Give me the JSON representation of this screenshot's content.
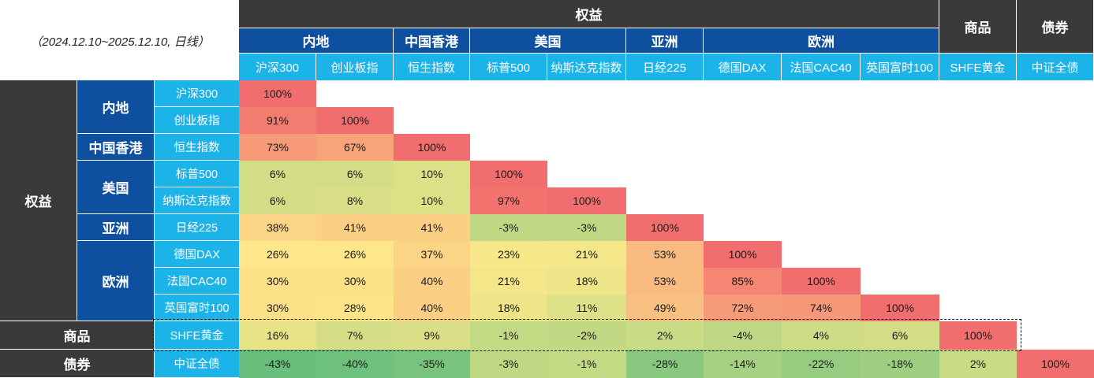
{
  "subtitle": "（2024.12.10~2025.12.10, 日线）",
  "column_groups": {
    "top": [
      {
        "label": "权益",
        "span": 9
      },
      {
        "label": "商品",
        "span": 1
      },
      {
        "label": "债券",
        "span": 1
      }
    ],
    "mid": [
      {
        "label": "内地",
        "span": 2
      },
      {
        "label": "中国香港",
        "span": 1
      },
      {
        "label": "美国",
        "span": 2
      },
      {
        "label": "亚洲",
        "span": 1
      },
      {
        "label": "欧洲",
        "span": 3
      }
    ]
  },
  "row_groups": {
    "outer": [
      {
        "label": "权益",
        "span": 9
      },
      {
        "label": "商品",
        "span": 1
      },
      {
        "label": "债券",
        "span": 1
      }
    ],
    "inner": [
      {
        "label": "内地",
        "span": 2
      },
      {
        "label": "中国香港",
        "span": 1
      },
      {
        "label": "美国",
        "span": 2
      },
      {
        "label": "亚洲",
        "span": 1
      },
      {
        "label": "欧洲",
        "span": 3
      }
    ]
  },
  "highlight_row": "SHFE黄金",
  "colors": {
    "header_dark": "#3a3a3a",
    "header_blue": "#0f4fa0",
    "header_cyan": "#1cb3e8",
    "high": "#f26d6d",
    "mid": "#fde98a",
    "low": "#63be7b"
  },
  "chart_data": {
    "type": "heatmap",
    "assets": [
      "沪深300",
      "创业板指",
      "恒生指数",
      "标普500",
      "纳斯达克指数",
      "日经225",
      "德国DAX",
      "法国CAC40",
      "英国富时100",
      "SHFE黄金",
      "中证全债"
    ],
    "matrix": [
      [
        100
      ],
      [
        91,
        100
      ],
      [
        73,
        67,
        100
      ],
      [
        6,
        6,
        10,
        100
      ],
      [
        6,
        8,
        10,
        97,
        100
      ],
      [
        38,
        41,
        41,
        -3,
        -3,
        100
      ],
      [
        26,
        26,
        37,
        23,
        21,
        53,
        100
      ],
      [
        30,
        30,
        40,
        21,
        18,
        53,
        85,
        100
      ],
      [
        30,
        28,
        40,
        18,
        11,
        49,
        72,
        74,
        100
      ],
      [
        16,
        7,
        9,
        -1,
        -2,
        2,
        -4,
        4,
        6,
        100
      ],
      [
        -43,
        -40,
        -35,
        -3,
        -1,
        -28,
        -14,
        -22,
        -18,
        2,
        100
      ]
    ],
    "value_suffix": "%"
  }
}
